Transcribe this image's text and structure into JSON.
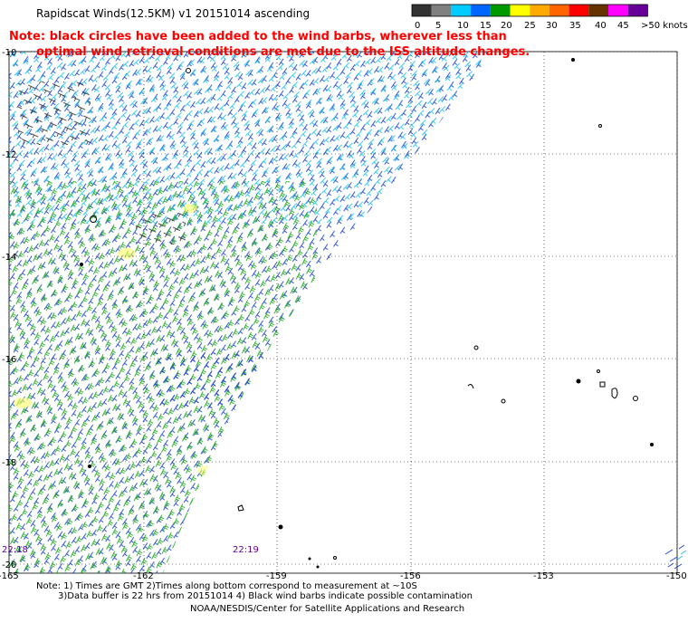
{
  "title": "Rapidscat Winds(12.5KM) v1 20151014 ascending",
  "note_line1": "Note: black circles have been added to the wind barbs, wherever less than",
  "note_line2": "optimal wind retrieval conditions are met due to the ISS altitude changes.",
  "legend": {
    "labels": [
      "0",
      "5",
      "10",
      "15",
      "20",
      "25",
      "30",
      "35",
      "40",
      "45",
      ">50 knots"
    ],
    "colors": [
      "#333333",
      "#808080",
      "#00ccff",
      "#0066ff",
      "#009900",
      "#ffff00",
      "#ffaa00",
      "#ff6600",
      "#ff0000",
      "#663300",
      "#ff00ff",
      "#660099"
    ]
  },
  "axes": {
    "lat_labels": [
      "-10",
      "-12",
      "-14",
      "-16",
      "-18",
      "-20"
    ],
    "lon_labels": [
      "-165",
      "-162",
      "-159",
      "-156",
      "-153",
      "-150"
    ]
  },
  "time_labels": [
    "22:18",
    "22:19"
  ],
  "footer": {
    "line1": "Note: 1) Times are GMT 2)Times along bottom correspond to measurement at ~10S",
    "line2": "3)Data buffer is 22 hrs from 20151014 4) Black wind barbs indicate possible contamination",
    "line3": "NOAA/NESDIS/Center for Satellite Applications and Research"
  }
}
